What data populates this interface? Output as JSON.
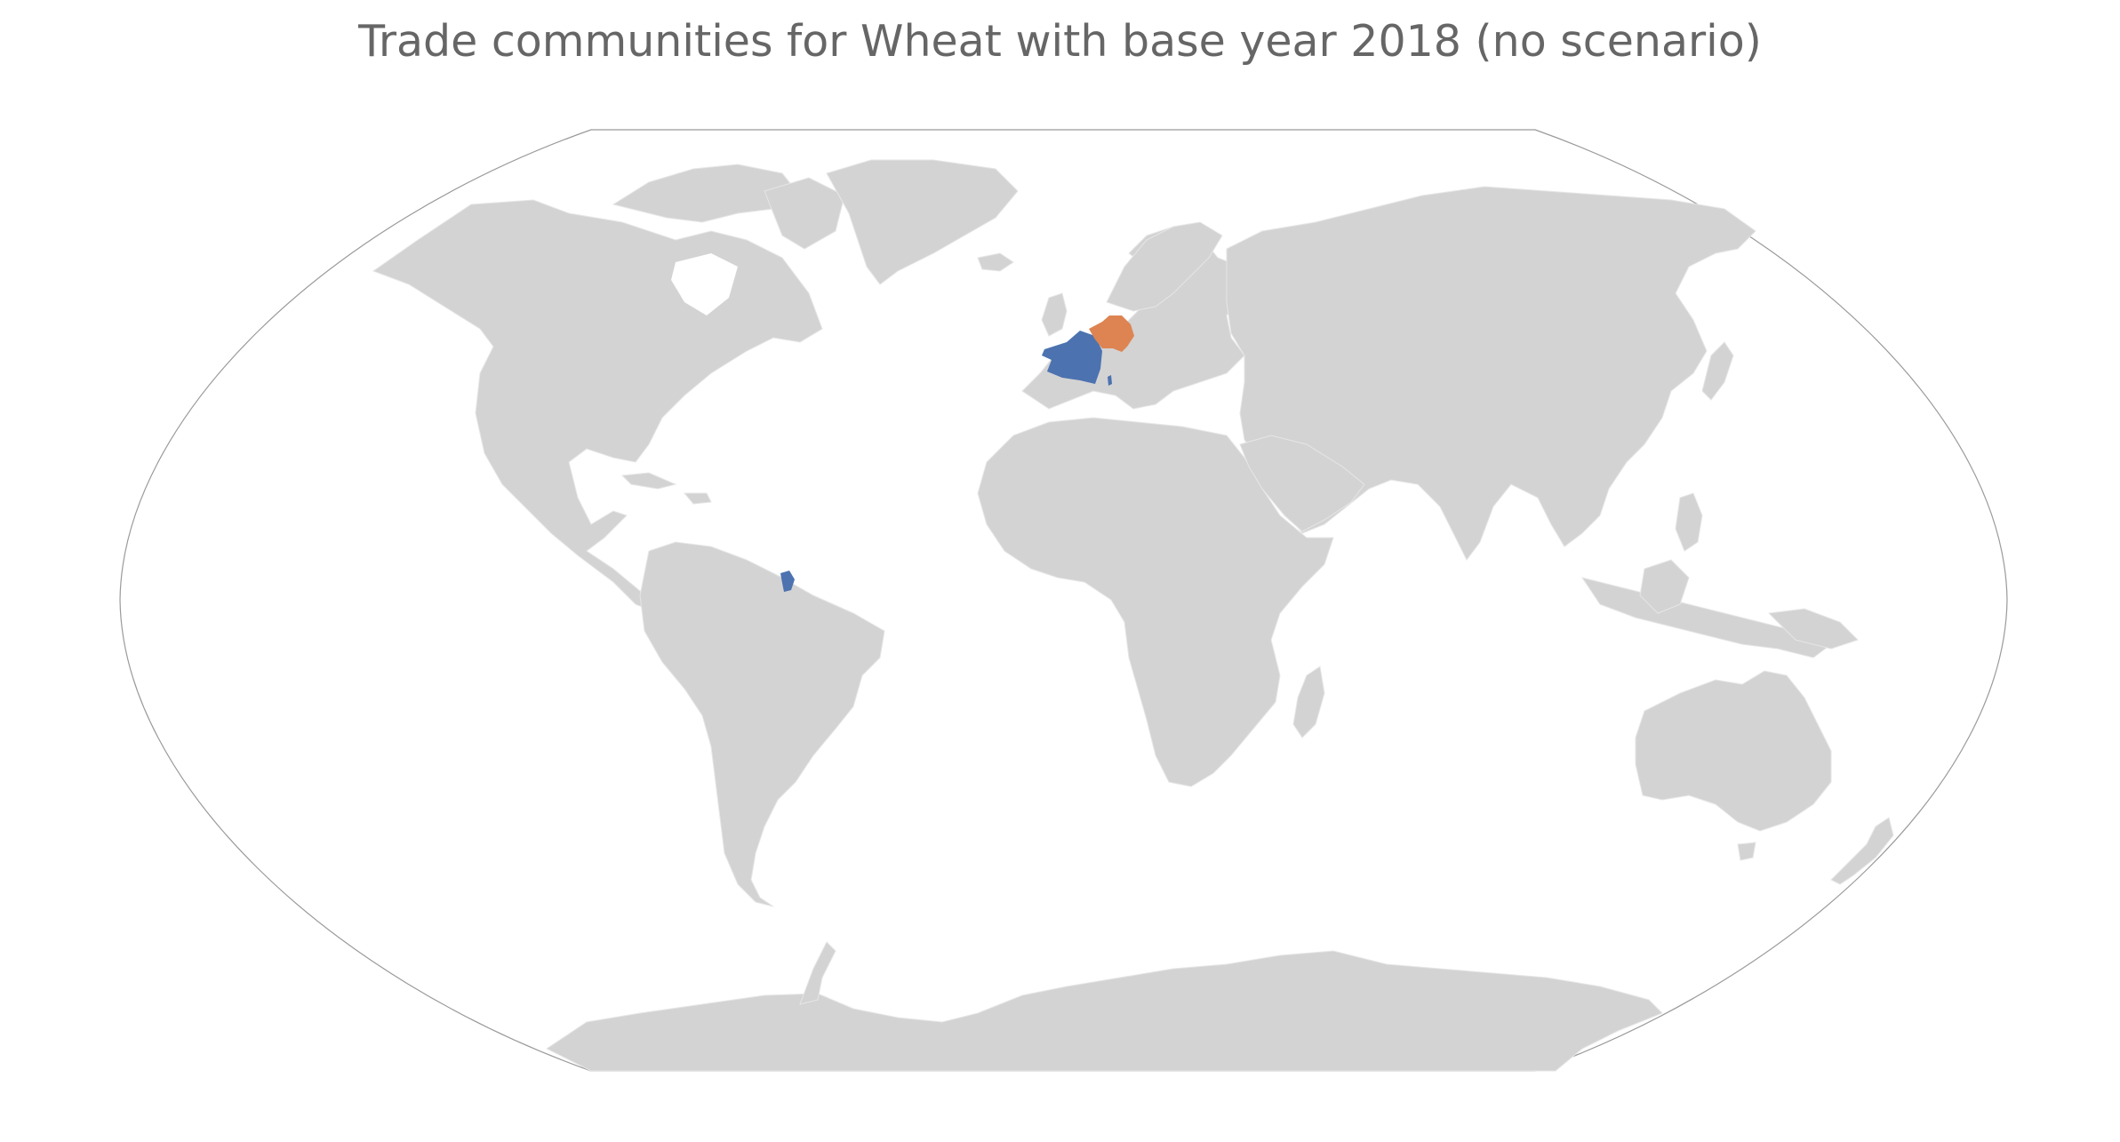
{
  "map": {
    "title": "Trade communities for Wheat with base year 2018 (no scenario)",
    "projection": "Winkel tripel",
    "base_land_color": "#d3d3d3",
    "frame_color": "#9a9a9a",
    "communities": [
      {
        "id": "community-1",
        "color": "#4c72b0",
        "countries": [
          "France",
          "French Guiana",
          "Corsica"
        ]
      },
      {
        "id": "community-2",
        "color": "#dd8452",
        "countries": [
          "Germany",
          "Austria"
        ]
      }
    ]
  }
}
